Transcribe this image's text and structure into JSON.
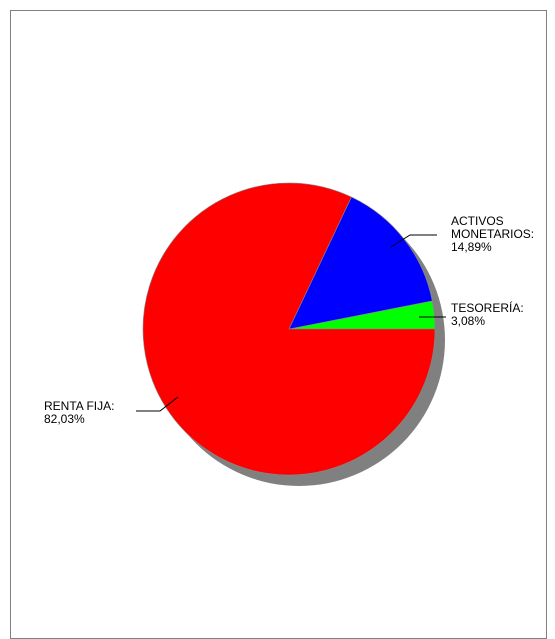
{
  "chart_data": {
    "type": "pie",
    "slices": [
      {
        "name": "ACTIVOS MONETARIOS",
        "value": 14.89,
        "label_lines": [
          "ACTIVOS",
          "MONETARIOS:",
          "14,89%"
        ],
        "color": "#0000FF"
      },
      {
        "name": "TESORERÍA",
        "value": 3.08,
        "label_lines": [
          "TESORERÍA:",
          "3,08%"
        ],
        "color": "#00FF00"
      },
      {
        "name": "RENTA FIJA",
        "value": 82.03,
        "label_lines": [
          "RENTA FIJA:",
          "82,03%"
        ],
        "color": "#FF0000"
      }
    ],
    "shadow_color": "#808080",
    "label_placement": "outside, with leader lines"
  }
}
